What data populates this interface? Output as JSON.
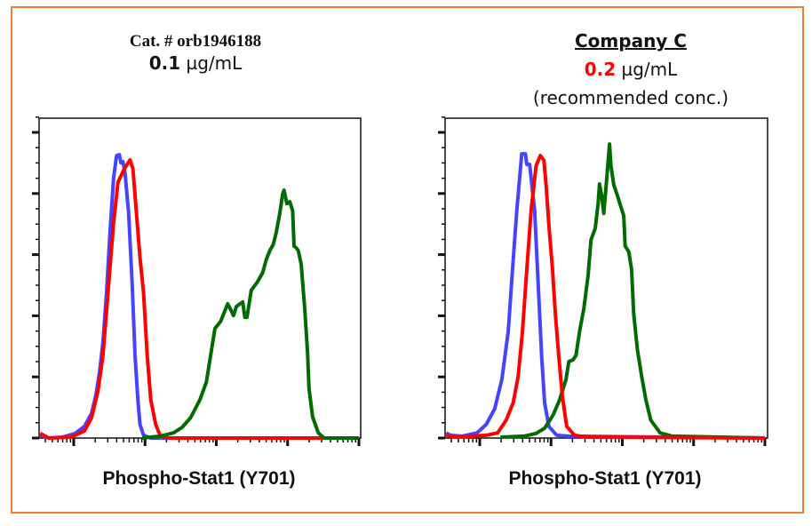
{
  "colors": {
    "border": "#ed7d31",
    "blue": "#4444ff",
    "red": "#ff0000",
    "green": "#006b00"
  },
  "chart_data": [
    {
      "type": "line",
      "title_line1": "Cat. # orb1946188",
      "conc_value": "0.1",
      "conc_unit": "µg/mL",
      "xlabel": "Phospho-Stat1 (Y701)",
      "ylabel": "",
      "xscale": "log (values in decades)",
      "xlim": [
        0.5,
        5.05
      ],
      "ylim": [
        0,
        105
      ],
      "grid": false,
      "series": [
        {
          "color": "blue",
          "x": [
            0.53,
            0.65,
            0.84,
            1.02,
            1.15,
            1.25,
            1.31,
            1.36,
            1.41,
            1.46,
            1.51,
            1.56,
            1.6,
            1.64,
            1.66,
            1.69,
            1.72,
            1.77,
            1.82,
            1.86,
            1.9,
            1.93,
            1.98,
            2.08,
            5.0
          ],
          "y": [
            0.9,
            0,
            0.3,
            1.5,
            3.8,
            8.1,
            14.0,
            21.2,
            31.4,
            47.4,
            67.7,
            85.2,
            92.4,
            92.7,
            90.1,
            90.4,
            86.6,
            73.5,
            50.3,
            27.0,
            12.5,
            4.4,
            0.9,
            0,
            0
          ]
        },
        {
          "color": "red",
          "x": [
            0.53,
            0.65,
            0.96,
            1.15,
            1.25,
            1.34,
            1.41,
            1.46,
            1.51,
            1.56,
            1.62,
            1.71,
            1.79,
            1.83,
            1.88,
            1.93,
            1.98,
            2.03,
            2.08,
            2.15,
            2.21,
            2.33,
            5.0
          ],
          "y": [
            1.5,
            0,
            0.3,
            2.3,
            6.7,
            15.4,
            27.0,
            41.6,
            56.1,
            70.6,
            83.7,
            88.1,
            91.0,
            88.1,
            73.5,
            59.0,
            47.4,
            27.0,
            12.5,
            4.4,
            0.9,
            0,
            0
          ]
        },
        {
          "color": "green",
          "x": [
            1.96,
            2.21,
            2.4,
            2.52,
            2.64,
            2.77,
            2.86,
            2.93,
            2.98,
            3.06,
            3.12,
            3.16,
            3.21,
            3.24,
            3.28,
            3.33,
            3.37,
            3.4,
            3.43,
            3.49,
            3.58,
            3.65,
            3.7,
            3.75,
            3.8,
            3.84,
            3.89,
            3.93,
            3.95,
            3.99,
            4.03,
            4.07,
            4.09,
            4.12,
            4.15,
            4.19,
            4.24,
            4.28,
            4.3,
            4.35,
            4.43,
            4.51,
            5.0
          ],
          "y": [
            0,
            0.6,
            1.7,
            3.5,
            6.7,
            12.5,
            18.3,
            28.5,
            35.8,
            38.1,
            41.6,
            43.9,
            41.6,
            40.1,
            43.0,
            43.9,
            44.5,
            39.5,
            39.5,
            48.3,
            51.2,
            54.1,
            58.4,
            61.3,
            63.4,
            67.2,
            73.5,
            79.7,
            81.1,
            76.7,
            77.3,
            74.4,
            62.8,
            62.2,
            61.3,
            56.9,
            42.4,
            27.9,
            16.3,
            7.0,
            1.7,
            0,
            0
          ]
        }
      ]
    },
    {
      "type": "line",
      "title_line1": "Company C",
      "conc_value": "0.2",
      "conc_unit": "µg/mL",
      "title_line3": "(recommended conc.)",
      "xlabel": "Phospho-Stat1 (Y701)",
      "ylabel": "",
      "xscale": "log (values in decades)",
      "xlim": [
        0.5,
        5.05
      ],
      "ylim": [
        0,
        105
      ],
      "grid": false,
      "series": [
        {
          "color": "blue",
          "x": [
            0.53,
            0.59,
            0.75,
            0.96,
            1.09,
            1.21,
            1.31,
            1.4,
            1.46,
            1.52,
            1.59,
            1.64,
            1.66,
            1.7,
            1.72,
            1.77,
            1.82,
            1.87,
            1.91,
            1.97,
            2.08,
            2.25,
            5.0
          ],
          "y": [
            1.7,
            0.9,
            0.6,
            1.7,
            4.4,
            9.6,
            19.2,
            34.9,
            55.2,
            74.4,
            93.0,
            93.0,
            89.5,
            89.5,
            85.2,
            74.4,
            50.3,
            26.2,
            11.6,
            3.8,
            0.9,
            0.6,
            0
          ]
        },
        {
          "color": "green",
          "x": [
            1.29,
            1.62,
            1.79,
            1.91,
            2.03,
            2.12,
            2.21,
            2.25,
            2.31,
            2.35,
            2.4,
            2.46,
            2.52,
            2.56,
            2.62,
            2.66,
            2.68,
            2.71,
            2.74,
            2.78,
            2.82,
            2.84,
            2.88,
            2.93,
            2.98,
            3.02,
            3.04,
            3.09,
            3.13,
            3.16,
            3.21,
            3.27,
            3.33,
            3.4,
            3.53,
            3.7,
            5.0
          ],
          "y": [
            0.3,
            0.6,
            1.5,
            3.2,
            7.6,
            12.5,
            19.2,
            25.0,
            25.6,
            27.0,
            34.9,
            42.4,
            53.2,
            64.8,
            68.6,
            76.5,
            83.1,
            79.4,
            73.5,
            84.3,
            96.2,
            89.0,
            82.8,
            79.4,
            75.6,
            72.7,
            62.8,
            61.0,
            55.2,
            40.7,
            29.1,
            20.3,
            12.5,
            5.8,
            1.7,
            0.6,
            0
          ]
        },
        {
          "color": "red",
          "x": [
            0.53,
            0.66,
            1.09,
            1.25,
            1.37,
            1.47,
            1.54,
            1.6,
            1.66,
            1.72,
            1.79,
            1.85,
            1.9,
            1.93,
            1.97,
            2.02,
            2.06,
            2.11,
            2.16,
            2.22,
            2.33,
            2.5,
            5.0
          ],
          "y": [
            0.9,
            0.3,
            0.9,
            1.7,
            5.8,
            11.6,
            20.3,
            34.9,
            55.2,
            74.4,
            89.0,
            92.4,
            90.9,
            83.1,
            69.8,
            55.2,
            40.7,
            26.2,
            13.4,
            3.8,
            0.9,
            0.3,
            0
          ]
        }
      ]
    }
  ]
}
